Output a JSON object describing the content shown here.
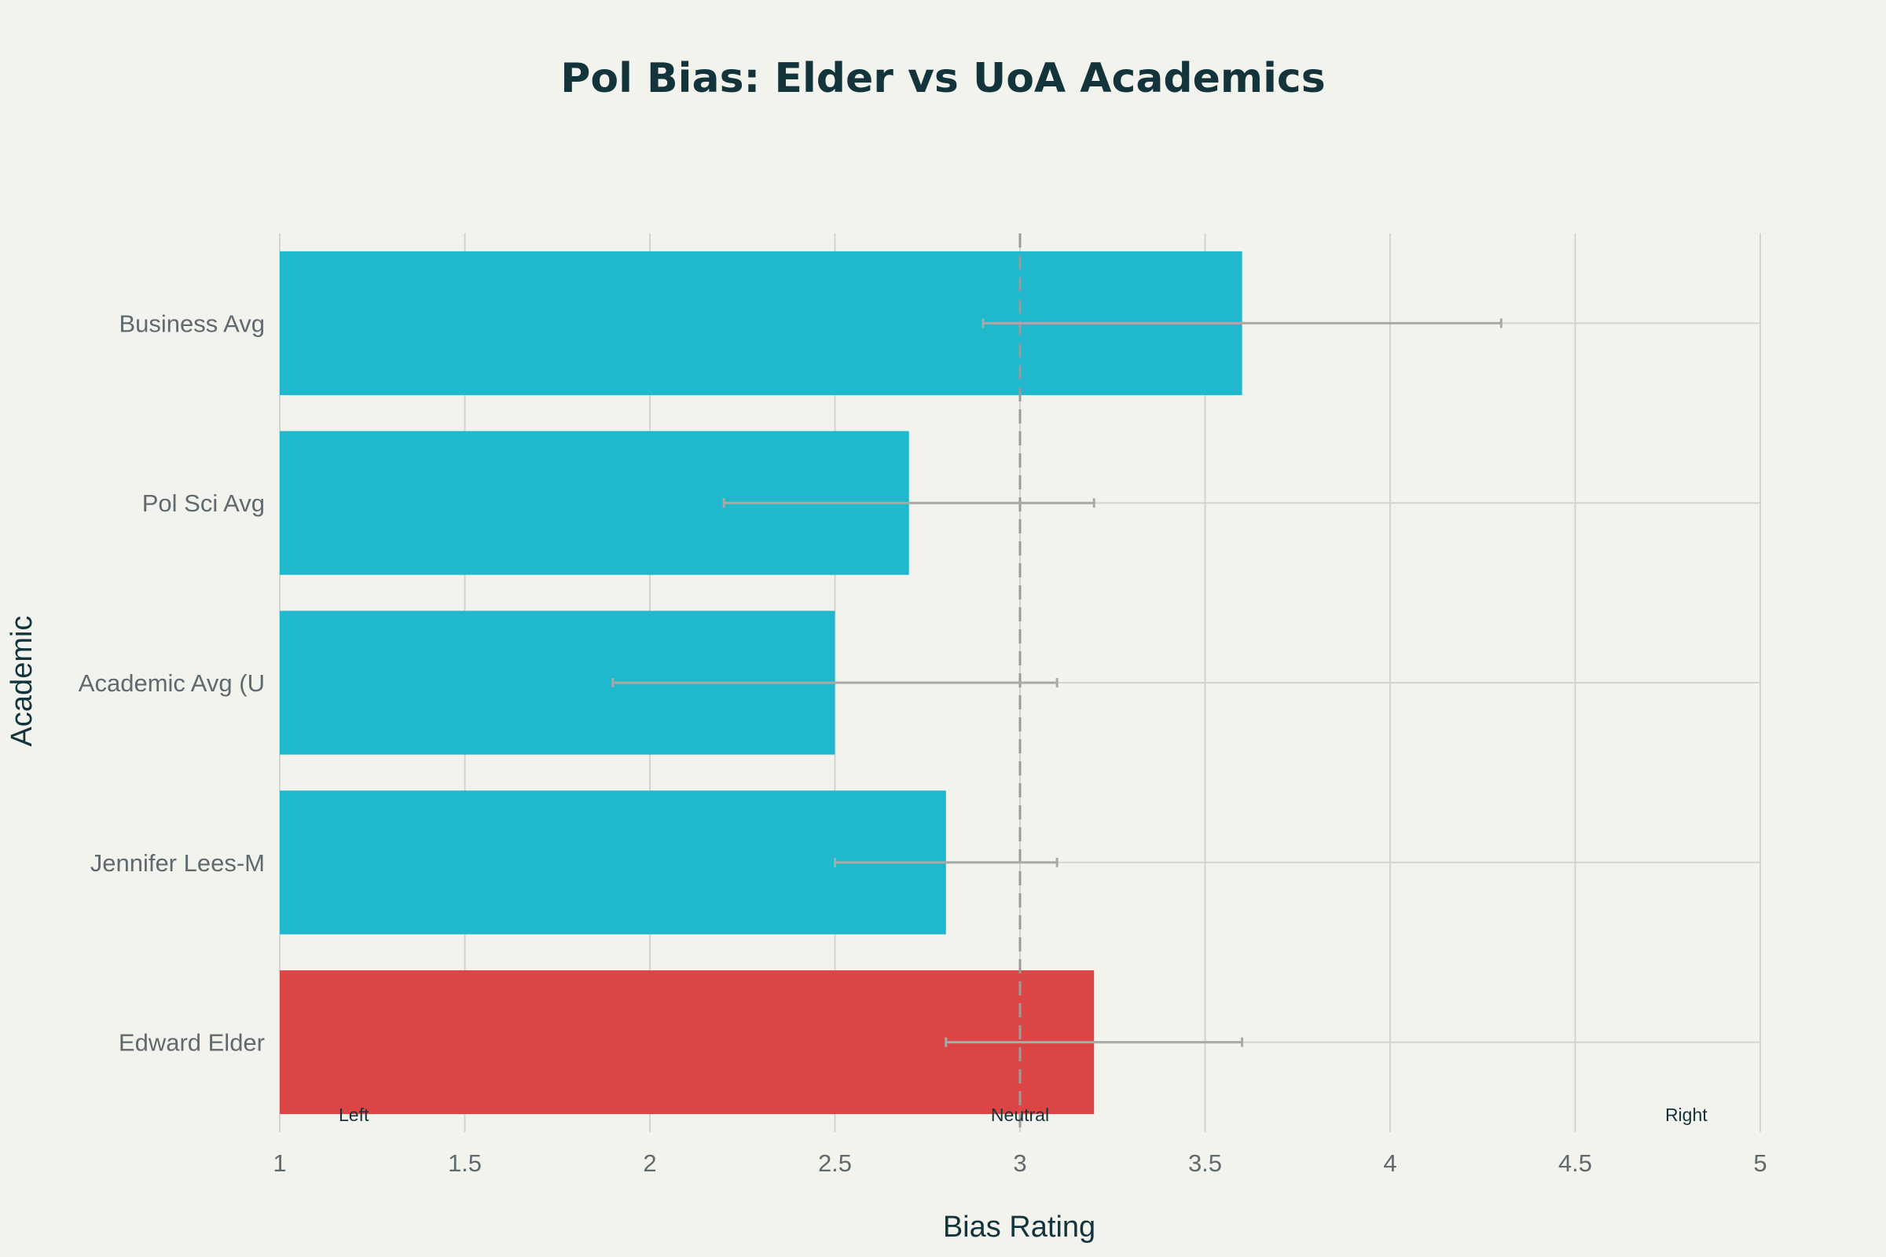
{
  "chart_data": {
    "type": "bar",
    "orientation": "horizontal",
    "title": "Pol Bias: Elder vs UoA Academics",
    "xlabel": "Bias Rating",
    "ylabel": "Academic",
    "xlim": [
      1,
      5
    ],
    "xticks": [
      "1",
      "1.5",
      "2",
      "2.5",
      "3",
      "3.5",
      "4",
      "4.5",
      "5"
    ],
    "xtick_values": [
      1,
      1.5,
      2,
      2.5,
      3,
      3.5,
      4,
      4.5,
      5
    ],
    "grid": true,
    "categories": [
      "Edward Elder",
      "Jennifer Lees-M",
      "Academic Avg (U",
      "Pol Sci Avg",
      "Business Avg"
    ],
    "values": [
      3.2,
      2.8,
      2.5,
      2.7,
      3.6
    ],
    "error_low": [
      2.8,
      2.5,
      1.9,
      2.2,
      2.9
    ],
    "error_high": [
      3.6,
      3.1,
      3.1,
      3.2,
      4.3
    ],
    "bar_colors": [
      "#db4545",
      "#1fb8cd",
      "#1fb8cd",
      "#1fb8cd",
      "#1fb8cd"
    ],
    "reference_line": {
      "x": 3,
      "style": "dashed",
      "color": "#9a9a9a"
    },
    "annotations": [
      {
        "text": "Left",
        "x": 1.2
      },
      {
        "text": "Neutral",
        "x": 3
      },
      {
        "text": "Right",
        "x": 4.8
      }
    ],
    "colors": {
      "background": "#f3f3ee",
      "grid": "#d4d4cf",
      "errorbar": "#a8aaa6",
      "title": "#13343b",
      "ticks": "#5f6a6f"
    }
  }
}
